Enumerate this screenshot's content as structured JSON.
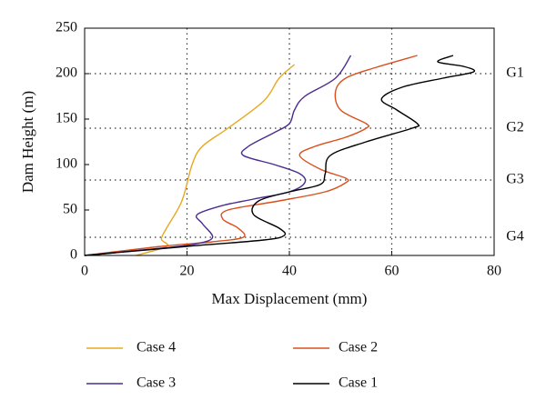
{
  "chart_data": {
    "type": "line",
    "xlabel": "Max Displacement (mm)",
    "ylabel": "Dam Height (m)",
    "xlim": [
      0,
      80
    ],
    "xticks": [
      0,
      20,
      40,
      60,
      80
    ],
    "ylim": [
      0,
      250
    ],
    "yticks": [
      0,
      50,
      100,
      150,
      200,
      250
    ],
    "grid": true,
    "annotations": [
      {
        "label": "G1",
        "y": 200
      },
      {
        "label": "G2",
        "y": 140
      },
      {
        "label": "G3",
        "y": 83
      },
      {
        "label": "G4",
        "y": 20
      }
    ],
    "series": [
      {
        "name": "Case 4",
        "color": "#e8a820",
        "x": [
          10,
          16,
          15,
          16,
          19,
          21,
          23,
          28,
          35,
          38,
          41
        ],
        "values": [
          0,
          10,
          18,
          30,
          60,
          100,
          120,
          140,
          170,
          195,
          210
        ]
      },
      {
        "name": "Case 2",
        "color": "#d9501e",
        "x": [
          0,
          15,
          25,
          31,
          30,
          27,
          28,
          38,
          47,
          51,
          51,
          46,
          42,
          45,
          51,
          55,
          55,
          50,
          49,
          51,
          57,
          65
        ],
        "values": [
          0,
          10,
          15,
          20,
          30,
          40,
          50,
          60,
          70,
          80,
          85,
          95,
          110,
          120,
          130,
          140,
          145,
          160,
          180,
          195,
          207,
          220
        ]
      },
      {
        "name": "Case 3",
        "color": "#4b2c8f",
        "x": [
          0,
          15,
          22,
          25,
          23,
          22,
          27,
          33,
          40,
          43,
          42,
          37,
          31,
          32,
          37,
          40,
          41,
          43,
          49,
          52
        ],
        "values": [
          0,
          8,
          13,
          20,
          35,
          45,
          55,
          62,
          70,
          80,
          90,
          100,
          110,
          120,
          135,
          145,
          160,
          175,
          195,
          220
        ]
      },
      {
        "name": "Case 1",
        "color": "#000000",
        "x": [
          0,
          20,
          35,
          39,
          38,
          33,
          34,
          40,
          46,
          47,
          48,
          55,
          64,
          65,
          61,
          58,
          62,
          70,
          76,
          74,
          69,
          72
        ],
        "values": [
          0,
          10,
          17,
          22,
          30,
          45,
          60,
          70,
          78,
          90,
          110,
          125,
          140,
          145,
          160,
          172,
          185,
          195,
          202,
          208,
          213,
          220
        ]
      }
    ]
  }
}
